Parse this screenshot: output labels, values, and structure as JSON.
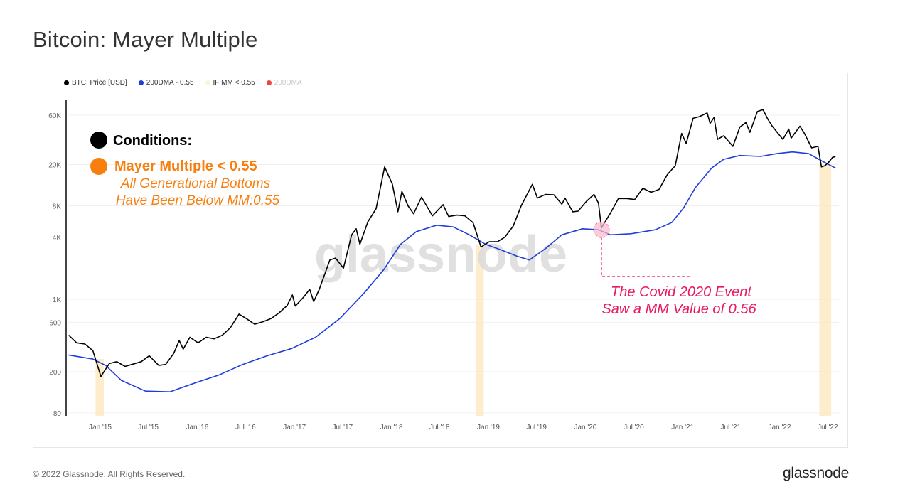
{
  "page_title": "Bitcoin: Mayer Multiple",
  "footer": "© 2022 Glassnode. All Rights Reserved.",
  "brand": "glassnode",
  "watermark": "glassnode",
  "colors": {
    "price": "#000000",
    "dma": "#1f3ddb",
    "band": "#fde9c0",
    "red": "#ef4444",
    "orange": "#f77f0f",
    "annotation": "#e8195f"
  },
  "annotations": {
    "conditions": "Conditions:",
    "mm_condition": "Mayer Multiple < 0.55",
    "bottoms_line1": "All Generational Bottoms",
    "bottoms_line2": "Have Been Below MM:0.55",
    "covid_line1": "The Covid 2020 Event",
    "covid_line2": "Saw a MM Value of 0.56"
  },
  "chart_data": {
    "type": "line",
    "title": "Bitcoin: Mayer Multiple",
    "y_scale": "log",
    "ylim": [
      80,
      90000
    ],
    "y_ticks": [
      {
        "v": 60000,
        "label": "60K"
      },
      {
        "v": 20000,
        "label": "20K"
      },
      {
        "v": 8000,
        "label": "8K"
      },
      {
        "v": 4000,
        "label": "4K"
      },
      {
        "v": 1000,
        "label": "1K"
      },
      {
        "v": 600,
        "label": "600"
      },
      {
        "v": 200,
        "label": "200"
      },
      {
        "v": 80,
        "label": "80"
      }
    ],
    "x_ticks": [
      {
        "d": "2015-01",
        "label": "Jan '15"
      },
      {
        "d": "2015-07",
        "label": "Jul '15"
      },
      {
        "d": "2016-01",
        "label": "Jan '16"
      },
      {
        "d": "2016-07",
        "label": "Jul '16"
      },
      {
        "d": "2017-01",
        "label": "Jan '17"
      },
      {
        "d": "2017-07",
        "label": "Jul '17"
      },
      {
        "d": "2018-01",
        "label": "Jan '18"
      },
      {
        "d": "2018-07",
        "label": "Jul '18"
      },
      {
        "d": "2019-01",
        "label": "Jan '19"
      },
      {
        "d": "2019-07",
        "label": "Jul '19"
      },
      {
        "d": "2020-01",
        "label": "Jan '20"
      },
      {
        "d": "2020-07",
        "label": "Jul '20"
      },
      {
        "d": "2021-01",
        "label": "Jan '21"
      },
      {
        "d": "2021-07",
        "label": "Jul '21"
      },
      {
        "d": "2022-01",
        "label": "Jan '22"
      },
      {
        "d": "2022-07",
        "label": "Jul '22"
      }
    ],
    "grid": true,
    "legend_position": "top-left",
    "legend": [
      {
        "name": "BTC: Price [USD]",
        "color": "#000000"
      },
      {
        "name": "200DMA - 0.55",
        "color": "#1f3ddb"
      },
      {
        "name": "IF MM < 0.55",
        "color": "#fdf3dc"
      },
      {
        "name": "200DMA",
        "color": "#ef4444",
        "muted": true
      }
    ],
    "series": [
      {
        "name": "BTC: Price [USD]",
        "color": "#000000",
        "points": [
          [
            "2014-09-15",
            450
          ],
          [
            "2014-10-15",
            380
          ],
          [
            "2014-11-15",
            370
          ],
          [
            "2014-12-15",
            320
          ],
          [
            "2015-01-14",
            180
          ],
          [
            "2015-02-15",
            240
          ],
          [
            "2015-03-15",
            250
          ],
          [
            "2015-04-15",
            225
          ],
          [
            "2015-05-15",
            237
          ],
          [
            "2015-06-15",
            250
          ],
          [
            "2015-07-15",
            285
          ],
          [
            "2015-08-20",
            230
          ],
          [
            "2015-09-15",
            235
          ],
          [
            "2015-10-15",
            300
          ],
          [
            "2015-11-05",
            400
          ],
          [
            "2015-11-20",
            330
          ],
          [
            "2015-12-15",
            430
          ],
          [
            "2016-01-15",
            380
          ],
          [
            "2016-02-15",
            430
          ],
          [
            "2016-03-15",
            415
          ],
          [
            "2016-04-15",
            450
          ],
          [
            "2016-05-15",
            530
          ],
          [
            "2016-06-17",
            720
          ],
          [
            "2016-07-15",
            650
          ],
          [
            "2016-08-15",
            575
          ],
          [
            "2016-09-15",
            608
          ],
          [
            "2016-10-15",
            650
          ],
          [
            "2016-11-15",
            740
          ],
          [
            "2016-12-15",
            870
          ],
          [
            "2017-01-04",
            1100
          ],
          [
            "2017-01-15",
            860
          ],
          [
            "2017-02-15",
            1050
          ],
          [
            "2017-03-10",
            1250
          ],
          [
            "2017-03-25",
            950
          ],
          [
            "2017-04-15",
            1250
          ],
          [
            "2017-05-25",
            2400
          ],
          [
            "2017-06-15",
            2500
          ],
          [
            "2017-07-15",
            2000
          ],
          [
            "2017-08-15",
            4200
          ],
          [
            "2017-09-01",
            4800
          ],
          [
            "2017-09-15",
            3400
          ],
          [
            "2017-10-15",
            5600
          ],
          [
            "2017-11-15",
            7500
          ],
          [
            "2017-12-17",
            19000
          ],
          [
            "2018-01-15",
            13000
          ],
          [
            "2018-02-05",
            7000
          ],
          [
            "2018-02-20",
            11000
          ],
          [
            "2018-03-15",
            8000
          ],
          [
            "2018-04-05",
            6700
          ],
          [
            "2018-05-05",
            9700
          ],
          [
            "2018-06-15",
            6400
          ],
          [
            "2018-07-25",
            8200
          ],
          [
            "2018-08-15",
            6300
          ],
          [
            "2018-09-15",
            6500
          ],
          [
            "2018-10-15",
            6400
          ],
          [
            "2018-11-15",
            5500
          ],
          [
            "2018-12-15",
            3200
          ],
          [
            "2019-01-15",
            3600
          ],
          [
            "2019-02-15",
            3600
          ],
          [
            "2019-03-15",
            4000
          ],
          [
            "2019-04-15",
            5100
          ],
          [
            "2019-05-15",
            8000
          ],
          [
            "2019-06-26",
            12900
          ],
          [
            "2019-07-15",
            9500
          ],
          [
            "2019-08-15",
            10300
          ],
          [
            "2019-09-15",
            10200
          ],
          [
            "2019-10-15",
            8300
          ],
          [
            "2019-10-27",
            9500
          ],
          [
            "2019-11-25",
            7000
          ],
          [
            "2019-12-15",
            7100
          ],
          [
            "2020-01-15",
            8800
          ],
          [
            "2020-02-13",
            10300
          ],
          [
            "2020-03-01",
            8500
          ],
          [
            "2020-03-12",
            4900
          ],
          [
            "2020-04-15",
            6800
          ],
          [
            "2020-05-15",
            9400
          ],
          [
            "2020-06-15",
            9400
          ],
          [
            "2020-07-15",
            9200
          ],
          [
            "2020-08-15",
            11800
          ],
          [
            "2020-09-15",
            10800
          ],
          [
            "2020-10-15",
            11500
          ],
          [
            "2020-11-15",
            16000
          ],
          [
            "2020-12-15",
            19500
          ],
          [
            "2021-01-08",
            40000
          ],
          [
            "2021-01-25",
            32000
          ],
          [
            "2021-02-20",
            56000
          ],
          [
            "2021-03-15",
            58000
          ],
          [
            "2021-04-14",
            63000
          ],
          [
            "2021-04-25",
            50000
          ],
          [
            "2021-05-10",
            57000
          ],
          [
            "2021-05-23",
            35000
          ],
          [
            "2021-06-15",
            38000
          ],
          [
            "2021-07-20",
            30000
          ],
          [
            "2021-08-15",
            46000
          ],
          [
            "2021-09-07",
            51000
          ],
          [
            "2021-09-22",
            41000
          ],
          [
            "2021-10-20",
            65000
          ],
          [
            "2021-11-10",
            68000
          ],
          [
            "2021-11-28",
            55000
          ],
          [
            "2021-12-15",
            47000
          ],
          [
            "2022-01-24",
            35000
          ],
          [
            "2022-02-15",
            44000
          ],
          [
            "2022-02-24",
            36000
          ],
          [
            "2022-03-29",
            47000
          ],
          [
            "2022-04-15",
            40000
          ],
          [
            "2022-05-12",
            29000
          ],
          [
            "2022-06-05",
            30000
          ],
          [
            "2022-06-18",
            19000
          ],
          [
            "2022-07-01",
            19500
          ],
          [
            "2022-07-15",
            21000
          ],
          [
            "2022-07-30",
            23500
          ],
          [
            "2022-08-10",
            23900
          ]
        ]
      },
      {
        "name": "200DMA - 0.55",
        "color": "#1f3ddb",
        "points": [
          [
            "2014-09-15",
            290
          ],
          [
            "2014-12-15",
            265
          ],
          [
            "2015-02-01",
            230
          ],
          [
            "2015-04-01",
            165
          ],
          [
            "2015-07-01",
            130
          ],
          [
            "2015-10-01",
            128
          ],
          [
            "2016-01-01",
            155
          ],
          [
            "2016-04-01",
            185
          ],
          [
            "2016-07-01",
            235
          ],
          [
            "2016-10-01",
            285
          ],
          [
            "2017-01-01",
            335
          ],
          [
            "2017-04-01",
            430
          ],
          [
            "2017-07-01",
            650
          ],
          [
            "2017-10-01",
            1150
          ],
          [
            "2017-12-15",
            1950
          ],
          [
            "2018-02-15",
            3400
          ],
          [
            "2018-04-15",
            4500
          ],
          [
            "2018-07-01",
            5200
          ],
          [
            "2018-09-01",
            5000
          ],
          [
            "2018-11-01",
            4200
          ],
          [
            "2019-01-01",
            3400
          ],
          [
            "2019-03-01",
            3000
          ],
          [
            "2019-05-01",
            2600
          ],
          [
            "2019-06-15",
            2400
          ],
          [
            "2019-08-15",
            3100
          ],
          [
            "2019-10-15",
            4200
          ],
          [
            "2020-01-01",
            4800
          ],
          [
            "2020-03-01",
            4700
          ],
          [
            "2020-04-15",
            4200
          ],
          [
            "2020-07-01",
            4300
          ],
          [
            "2020-10-01",
            4700
          ],
          [
            "2020-12-01",
            5500
          ],
          [
            "2021-01-15",
            7600
          ],
          [
            "2021-03-01",
            12000
          ],
          [
            "2021-05-01",
            18500
          ],
          [
            "2021-06-15",
            22500
          ],
          [
            "2021-08-15",
            24500
          ],
          [
            "2021-11-01",
            24000
          ],
          [
            "2022-01-01",
            25500
          ],
          [
            "2022-03-01",
            26500
          ],
          [
            "2022-05-01",
            25500
          ],
          [
            "2022-06-15",
            22000
          ],
          [
            "2022-08-10",
            18500
          ]
        ]
      }
    ],
    "bands": [
      [
        "2014-12-25",
        "2015-01-25"
      ],
      [
        "2018-11-25",
        "2018-12-25"
      ],
      [
        "2022-06-10",
        "2022-07-25"
      ]
    ],
    "highlight": {
      "date": "2020-03-12",
      "value": 4700
    }
  }
}
